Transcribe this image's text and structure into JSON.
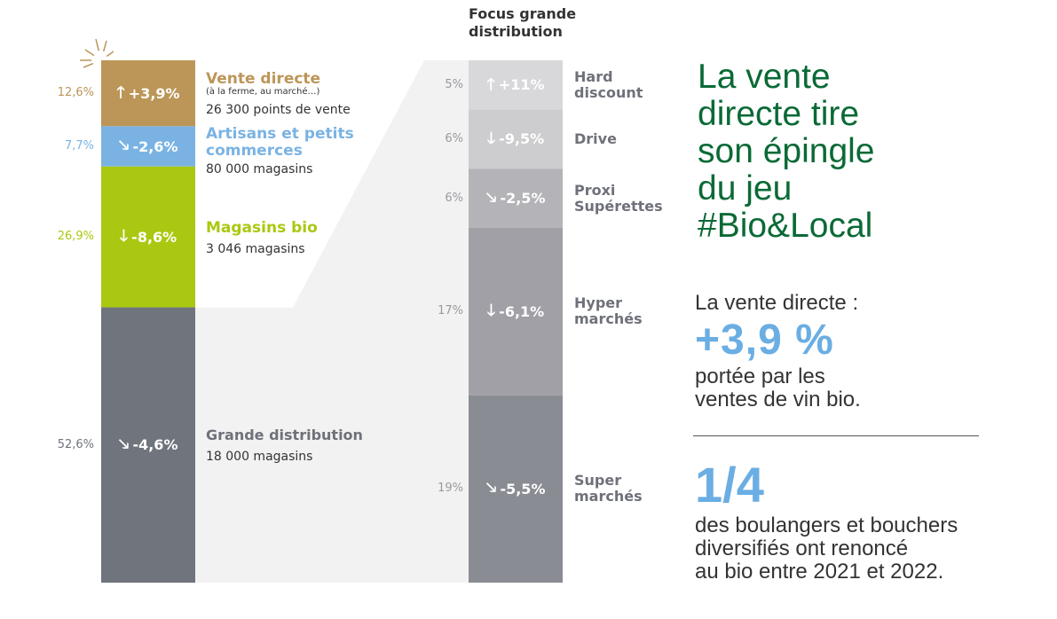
{
  "chart_data": [
    {
      "type": "bar",
      "stacked": true,
      "categories": [
        "Vente directe",
        "Artisans et petits commerces",
        "Magasins bio",
        "Grande distribution"
      ],
      "values": [
        12.6,
        7.7,
        26.9,
        52.6
      ],
      "share_labels": [
        "12,6%",
        "7,7%",
        "26,9%",
        "52,6%"
      ],
      "change_labels": [
        "+3,9%",
        "-2,6%",
        "-8,6%",
        "-4,6%"
      ],
      "change_directions": [
        "up",
        "down-right",
        "down",
        "down-right"
      ],
      "colors": [
        "#bc9658",
        "#7ab3e3",
        "#aac811",
        "#6f747d"
      ],
      "title_lines": [
        "Vente directe",
        "Artisans et petits\ncommerces",
        "Magasins bio",
        "Grande distribution"
      ],
      "subtitles": [
        "(à la ferme, au marché…)",
        "",
        "",
        ""
      ],
      "descriptions": [
        "26 300 points de vente",
        "80 000 magasins",
        "3 046 magasins",
        "18 000 magasins"
      ]
    },
    {
      "type": "bar",
      "stacked": true,
      "title": "Focus grande\ndistribution",
      "categories": [
        "Hard discount",
        "Drive",
        "Proxi Supérettes",
        "Hyper marchés",
        "Super marchés"
      ],
      "values": [
        5,
        6,
        6,
        17,
        19
      ],
      "share_labels": [
        "5%",
        "6%",
        "6%",
        "17%",
        "19%"
      ],
      "change_labels": [
        "+11%",
        "-9,5%",
        "-2,5%",
        "-6,1%",
        "-5,5%"
      ],
      "change_directions": [
        "up",
        "down",
        "down-right",
        "down",
        "down-right"
      ],
      "label_lines": [
        "Hard\ndiscount",
        "Drive",
        "Proxi\nSupérettes",
        "Hyper\nmarchés",
        "Super\nmarchés"
      ],
      "colors": [
        "#d8d8da",
        "#cdcdcf",
        "#b4b4b8",
        "#a0a0a6",
        "#8a8c93"
      ]
    }
  ],
  "headline": "La vente\ndirecte tire\nson épingle\ndu jeu\n#Bio&Local",
  "stat": {
    "intro": "La vente directe :",
    "value": "+3,9 %",
    "desc": "portée par les\nventes de vin bio."
  },
  "fraction": {
    "value": "1/4",
    "desc": "des boulangers et bouchers\ndiversifiés ont renoncé\nau bio entre 2021 et 2022."
  },
  "arrows": {
    "up": "🡑",
    "down": "🡓",
    "down-right": "🡖"
  }
}
